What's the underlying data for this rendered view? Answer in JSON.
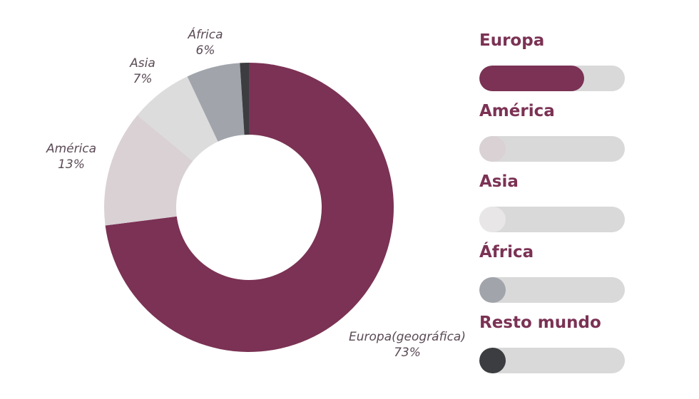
{
  "chart_data": {
    "type": "pie",
    "donut": true,
    "title": "",
    "slices": [
      {
        "label": "Europa(geográfica)",
        "value": 73,
        "display": "73%",
        "color": "#7b3254"
      },
      {
        "label": "América",
        "value": 13,
        "display": "13%",
        "color": "#d9d1d4"
      },
      {
        "label": "Asia",
        "value": 7,
        "display": "7%",
        "color": "#dcdcdc"
      },
      {
        "label": "África",
        "value": 6,
        "display": "6%",
        "color": "#a1a5ab"
      },
      {
        "label": "Resto mundo",
        "value": 1,
        "display": "",
        "color": "#3c3d40"
      }
    ],
    "legend": {
      "position": "right",
      "entries": [
        {
          "label": "Europa",
          "fill_fraction": 0.72,
          "color": "#7b3254"
        },
        {
          "label": "América",
          "fill_fraction": 0.18,
          "color": "#d9d1d4"
        },
        {
          "label": "Asia",
          "fill_fraction": 0.18,
          "color": "#e8e6e7"
        },
        {
          "label": "África",
          "fill_fraction": 0.18,
          "color": "#a1a5ab"
        },
        {
          "label": "Resto mundo",
          "fill_fraction": 0.18,
          "color": "#3c3d40"
        }
      ]
    }
  },
  "labels": {
    "europa": {
      "name": "Europa(geográfica)",
      "pct": "73%"
    },
    "america": {
      "name": "América",
      "pct": "13%"
    },
    "asia": {
      "name": "Asia",
      "pct": "7%"
    },
    "africa": {
      "name": "África",
      "pct": "6%"
    }
  },
  "legend": [
    {
      "title": "Europa"
    },
    {
      "title": "América"
    },
    {
      "title": "Asia"
    },
    {
      "title": "África"
    },
    {
      "title": "Resto mundo"
    }
  ]
}
